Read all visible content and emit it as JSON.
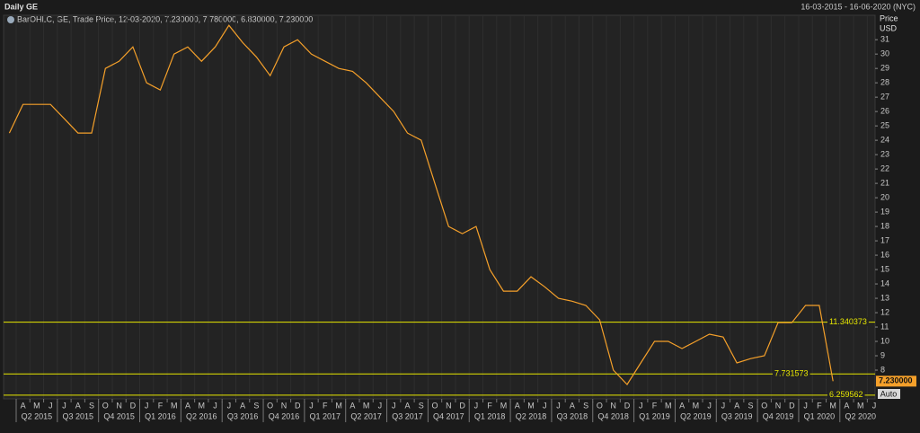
{
  "chart_data": {
    "type": "line",
    "title": "Daily GE",
    "date_range": "16-03-2015 - 16-06-2020 (NYC)",
    "y_axis_label": "Price",
    "y_axis_unit": "USD",
    "button": "Auto",
    "x": [
      "2015-03",
      "2015-04",
      "2015-05",
      "2015-06",
      "2015-07",
      "2015-08",
      "2015-09",
      "2015-10",
      "2015-11",
      "2015-12",
      "2016-01",
      "2016-02",
      "2016-03",
      "2016-04",
      "2016-05",
      "2016-06",
      "2016-07",
      "2016-08",
      "2016-09",
      "2016-10",
      "2016-11",
      "2016-12",
      "2017-01",
      "2017-02",
      "2017-03",
      "2017-04",
      "2017-05",
      "2017-06",
      "2017-07",
      "2017-08",
      "2017-09",
      "2017-10",
      "2017-11",
      "2017-12",
      "2018-01",
      "2018-02",
      "2018-03",
      "2018-04",
      "2018-05",
      "2018-06",
      "2018-07",
      "2018-08",
      "2018-09",
      "2018-10",
      "2018-11",
      "2018-12",
      "2019-01",
      "2019-02",
      "2019-03",
      "2019-04",
      "2019-05",
      "2019-06",
      "2019-07",
      "2019-08",
      "2019-09",
      "2019-10",
      "2019-11",
      "2019-12",
      "2020-01",
      "2020-02",
      "2020-03"
    ],
    "series": [
      {
        "name": "BarOHLC, GE, Trade Price, 12-03-2020, 7.230000, 7.780000, 6.830000, 7.230000",
        "color": "#f5a02a",
        "values": [
          24.5,
          26.5,
          26.5,
          26.5,
          25.5,
          24.5,
          24.5,
          29,
          29.5,
          30.5,
          28,
          27.5,
          30,
          30.5,
          29.5,
          30.5,
          32,
          30.8,
          29.8,
          28.5,
          30.5,
          31,
          30,
          29.5,
          29,
          28.8,
          28,
          27,
          26,
          24.5,
          24,
          21,
          18,
          17.5,
          18,
          15,
          13.5,
          13.5,
          14.5,
          13.8,
          13,
          12.8,
          12.5,
          11.5,
          8,
          7,
          8.5,
          10,
          10,
          9.5,
          10,
          10.5,
          10.3,
          8.5,
          8.8,
          9,
          11.3,
          11.3,
          12.5,
          12.5,
          7.23
        ]
      }
    ],
    "levels": [
      {
        "value": 11.340373,
        "color": "#e8e800"
      },
      {
        "value": 7.731573,
        "color": "#e8e800"
      },
      {
        "value": 6.259562,
        "color": "#e8e800"
      }
    ],
    "last_price": {
      "value": 7.23,
      "label": "7.230000"
    },
    "xlim": [
      "2015-03",
      "2020-07"
    ],
    "ylim": [
      6,
      32.7
    ],
    "yticks": [
      8,
      9,
      10,
      11,
      12,
      13,
      14,
      15,
      16,
      17,
      18,
      19,
      20,
      21,
      22,
      23,
      24,
      25,
      26,
      27,
      28,
      29,
      30,
      31
    ],
    "month_ticks": [
      {
        "value": "2015-04",
        "label": "A"
      },
      {
        "value": "2015-05",
        "label": "M"
      },
      {
        "value": "2015-06",
        "label": "J"
      },
      {
        "value": "2015-07",
        "label": "J"
      },
      {
        "value": "2015-08",
        "label": "A"
      },
      {
        "value": "2015-09",
        "label": "S"
      },
      {
        "value": "2015-10",
        "label": "O"
      },
      {
        "value": "2015-11",
        "label": "N"
      },
      {
        "value": "2015-12",
        "label": "D"
      },
      {
        "value": "2016-01",
        "label": "J"
      },
      {
        "value": "2016-02",
        "label": "F"
      },
      {
        "value": "2016-03",
        "label": "M"
      },
      {
        "value": "2016-04",
        "label": "A"
      },
      {
        "value": "2016-05",
        "label": "M"
      },
      {
        "value": "2016-06",
        "label": "J"
      },
      {
        "value": "2016-07",
        "label": "J"
      },
      {
        "value": "2016-08",
        "label": "A"
      },
      {
        "value": "2016-09",
        "label": "S"
      },
      {
        "value": "2016-10",
        "label": "O"
      },
      {
        "value": "2016-11",
        "label": "N"
      },
      {
        "value": "2016-12",
        "label": "D"
      },
      {
        "value": "2017-01",
        "label": "J"
      },
      {
        "value": "2017-02",
        "label": "F"
      },
      {
        "value": "2017-03",
        "label": "M"
      },
      {
        "value": "2017-04",
        "label": "A"
      },
      {
        "value": "2017-05",
        "label": "M"
      },
      {
        "value": "2017-06",
        "label": "J"
      },
      {
        "value": "2017-07",
        "label": "J"
      },
      {
        "value": "2017-08",
        "label": "A"
      },
      {
        "value": "2017-09",
        "label": "S"
      },
      {
        "value": "2017-10",
        "label": "O"
      },
      {
        "value": "2017-11",
        "label": "N"
      },
      {
        "value": "2017-12",
        "label": "D"
      },
      {
        "value": "2018-01",
        "label": "J"
      },
      {
        "value": "2018-02",
        "label": "F"
      },
      {
        "value": "2018-03",
        "label": "M"
      },
      {
        "value": "2018-04",
        "label": "A"
      },
      {
        "value": "2018-05",
        "label": "M"
      },
      {
        "value": "2018-06",
        "label": "J"
      },
      {
        "value": "2018-07",
        "label": "J"
      },
      {
        "value": "2018-08",
        "label": "A"
      },
      {
        "value": "2018-09",
        "label": "S"
      },
      {
        "value": "2018-10",
        "label": "O"
      },
      {
        "value": "2018-11",
        "label": "N"
      },
      {
        "value": "2018-12",
        "label": "D"
      },
      {
        "value": "2019-01",
        "label": "J"
      },
      {
        "value": "2019-02",
        "label": "F"
      },
      {
        "value": "2019-03",
        "label": "M"
      },
      {
        "value": "2019-04",
        "label": "A"
      },
      {
        "value": "2019-05",
        "label": "M"
      },
      {
        "value": "2019-06",
        "label": "J"
      },
      {
        "value": "2019-07",
        "label": "J"
      },
      {
        "value": "2019-08",
        "label": "A"
      },
      {
        "value": "2019-09",
        "label": "S"
      },
      {
        "value": "2019-10",
        "label": "O"
      },
      {
        "value": "2019-11",
        "label": "N"
      },
      {
        "value": "2019-12",
        "label": "D"
      },
      {
        "value": "2020-01",
        "label": "J"
      },
      {
        "value": "2020-02",
        "label": "F"
      },
      {
        "value": "2020-03",
        "label": "M"
      },
      {
        "value": "2020-04",
        "label": "A"
      },
      {
        "value": "2020-05",
        "label": "M"
      },
      {
        "value": "2020-06",
        "label": "J"
      }
    ],
    "quarter_ticks": [
      {
        "value": "2015-04",
        "label": "Q2 2015"
      },
      {
        "value": "2015-07",
        "label": "Q3 2015"
      },
      {
        "value": "2015-10",
        "label": "Q4 2015"
      },
      {
        "value": "2016-01",
        "label": "Q1 2016"
      },
      {
        "value": "2016-04",
        "label": "Q2 2016"
      },
      {
        "value": "2016-07",
        "label": "Q3 2016"
      },
      {
        "value": "2016-10",
        "label": "Q4 2016"
      },
      {
        "value": "2017-01",
        "label": "Q1 2017"
      },
      {
        "value": "2017-04",
        "label": "Q2 2017"
      },
      {
        "value": "2017-07",
        "label": "Q3 2017"
      },
      {
        "value": "2017-10",
        "label": "Q4 2017"
      },
      {
        "value": "2018-01",
        "label": "Q1 2018"
      },
      {
        "value": "2018-04",
        "label": "Q2 2018"
      },
      {
        "value": "2018-07",
        "label": "Q3 2018"
      },
      {
        "value": "2018-10",
        "label": "Q4 2018"
      },
      {
        "value": "2019-01",
        "label": "Q1 2019"
      },
      {
        "value": "2019-04",
        "label": "Q2 2019"
      },
      {
        "value": "2019-07",
        "label": "Q3 2019"
      },
      {
        "value": "2019-10",
        "label": "Q4 2019"
      },
      {
        "value": "2020-01",
        "label": "Q1 2020"
      },
      {
        "value": "2020-04",
        "label": "Q2 2020"
      }
    ],
    "grid": true
  }
}
